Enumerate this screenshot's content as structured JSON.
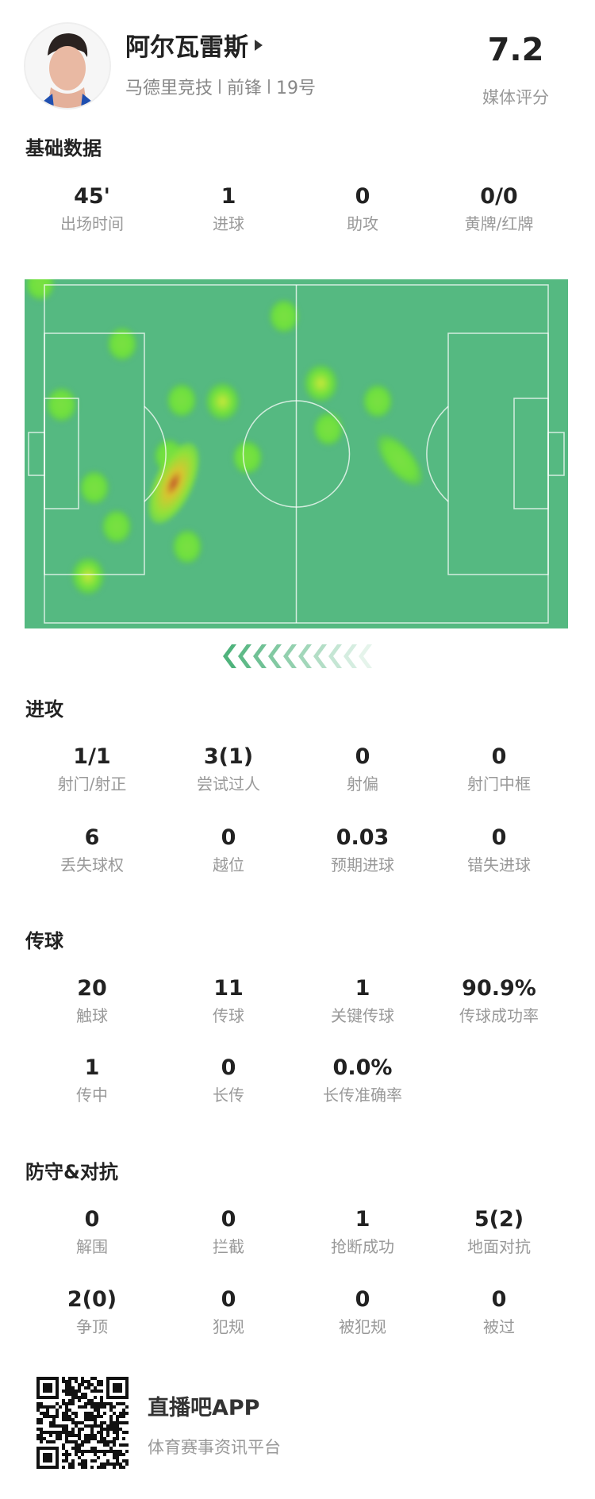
{
  "player": {
    "name": "阿尔瓦雷斯",
    "team": "马德里竞技",
    "position": "前锋",
    "number": "19号",
    "rating": "7.2",
    "rating_label": "媒体评分"
  },
  "basic": {
    "title": "基础数据",
    "stats": [
      {
        "value": "45'",
        "label": "出场时间"
      },
      {
        "value": "1",
        "label": "进球"
      },
      {
        "value": "0",
        "label": "助攻"
      },
      {
        "value": "0/0",
        "label": "黄牌/红牌"
      }
    ]
  },
  "heatmap": {
    "pitch_color": "#55b981",
    "attack_direction": "left",
    "points_pitch_percent": [
      {
        "x": 2.8,
        "y": 1.4,
        "i": 0.5
      },
      {
        "x": 47.8,
        "y": 10.6,
        "i": 0.55
      },
      {
        "x": 17.9,
        "y": 18.5,
        "i": 0.55
      },
      {
        "x": 6.8,
        "y": 35.9,
        "i": 0.6
      },
      {
        "x": 28.9,
        "y": 34.6,
        "i": 0.55
      },
      {
        "x": 36.4,
        "y": 34.9,
        "i": 0.75
      },
      {
        "x": 54.5,
        "y": 29.7,
        "i": 0.75
      },
      {
        "x": 65.0,
        "y": 34.9,
        "i": 0.55
      },
      {
        "x": 55.9,
        "y": 42.8,
        "i": 0.55
      },
      {
        "x": 41.0,
        "y": 51.0,
        "i": 0.55
      },
      {
        "x": 69.0,
        "y": 51.8,
        "i": 0.65
      },
      {
        "x": 26.6,
        "y": 50.5,
        "i": 0.55
      },
      {
        "x": 27.5,
        "y": 58.5,
        "i": 1.0
      },
      {
        "x": 12.8,
        "y": 59.7,
        "i": 0.55
      },
      {
        "x": 17.0,
        "y": 70.8,
        "i": 0.55
      },
      {
        "x": 29.9,
        "y": 76.6,
        "i": 0.55
      },
      {
        "x": 11.7,
        "y": 85.0,
        "i": 0.75
      }
    ]
  },
  "attack": {
    "title": "进攻",
    "stats": [
      {
        "value": "1/1",
        "label": "射门/射正"
      },
      {
        "value": "3(1)",
        "label": "尝试过人"
      },
      {
        "value": "0",
        "label": "射偏"
      },
      {
        "value": "0",
        "label": "射门中框"
      },
      {
        "value": "6",
        "label": "丢失球权"
      },
      {
        "value": "0",
        "label": "越位"
      },
      {
        "value": "0.03",
        "label": "预期进球"
      },
      {
        "value": "0",
        "label": "错失进球"
      }
    ]
  },
  "passing": {
    "title": "传球",
    "stats": [
      {
        "value": "20",
        "label": "触球"
      },
      {
        "value": "11",
        "label": "传球"
      },
      {
        "value": "1",
        "label": "关键传球"
      },
      {
        "value": "90.9%",
        "label": "传球成功率"
      },
      {
        "value": "1",
        "label": "传中"
      },
      {
        "value": "0",
        "label": "长传"
      },
      {
        "value": "0.0%",
        "label": "长传准确率"
      }
    ]
  },
  "defense": {
    "title": "防守&对抗",
    "stats": [
      {
        "value": "0",
        "label": "解围"
      },
      {
        "value": "0",
        "label": "拦截"
      },
      {
        "value": "1",
        "label": "抢断成功"
      },
      {
        "value": "5(2)",
        "label": "地面对抗"
      },
      {
        "value": "2(0)",
        "label": "争顶"
      },
      {
        "value": "0",
        "label": "犯规"
      },
      {
        "value": "0",
        "label": "被犯规"
      },
      {
        "value": "0",
        "label": "被过"
      }
    ]
  },
  "footer": {
    "app_name": "直播吧APP",
    "slogan": "体育赛事资讯平台"
  }
}
